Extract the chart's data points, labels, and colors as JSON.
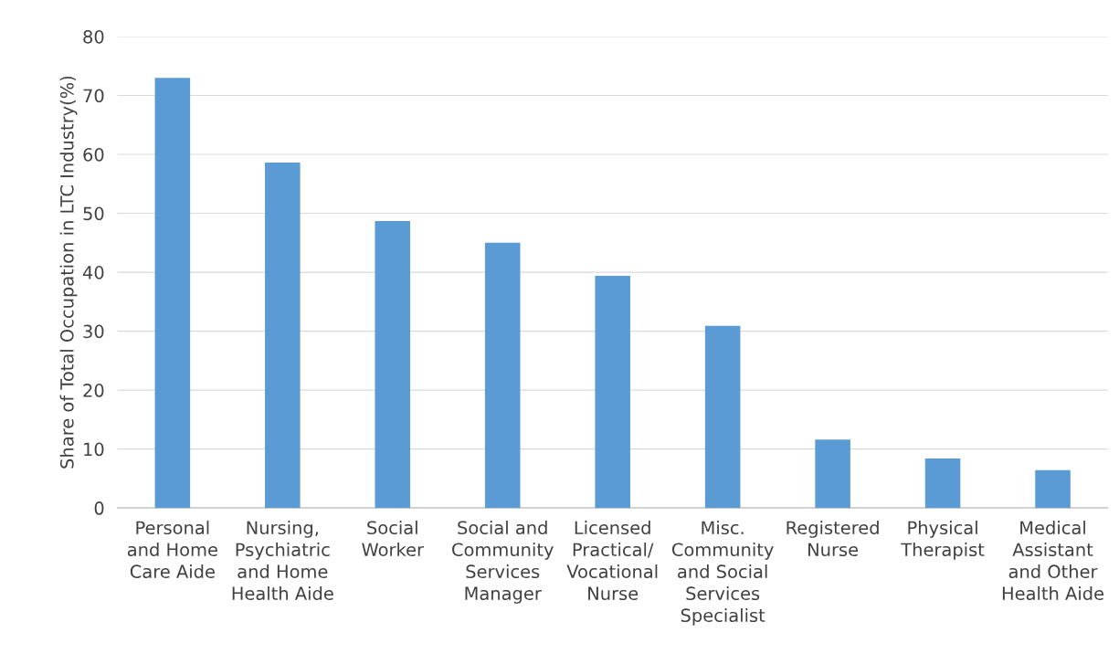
{
  "chart_data": {
    "type": "bar",
    "ylabel": "Share of Total Occupation in LTC Industry(%)",
    "categories": [
      "Personal\nand Home\nCare Aide",
      "Nursing,\nPsychiatric\nand Home\nHealth Aide",
      "Social\nWorker",
      "Social and\nCommunity\nServices\nManager",
      "Licensed\nPractical/\nVocational\nNurse",
      "Misc.\nCommunity\nand Social\nServices\nSpecialist",
      "Registered\nNurse",
      "Physical\nTherapist",
      "Medical\nAssistant\nand Other\nHealth Aide"
    ],
    "values": [
      73,
      58.6,
      48.7,
      45,
      39.4,
      30.9,
      11.6,
      8.4,
      6.4
    ],
    "color": "#5b9bd5",
    "ylim": [
      0,
      80
    ],
    "yticks": [
      0,
      10,
      20,
      30,
      40,
      50,
      60,
      70,
      80
    ],
    "grid": "y"
  }
}
